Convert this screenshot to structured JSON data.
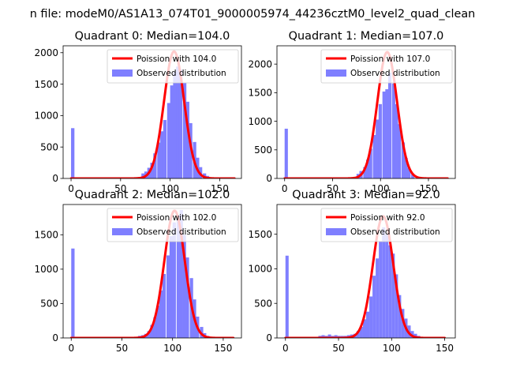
{
  "figure": {
    "suptitle": "n file: modeM0/AS1A13_074T01_9000005974_44236cztM0_level2_quad_clean"
  },
  "colors": {
    "poisson_line": "#ff0000",
    "observed_bars": "#7f7fff",
    "axes": "#000000",
    "background": "#ffffff"
  },
  "chart_data": [
    {
      "type": "bar",
      "title": "Quadrant 0: Median=104.0",
      "xlabel": "",
      "ylabel": "",
      "xlim": [
        -8,
        172
      ],
      "ylim": [
        0,
        2110
      ],
      "xticks": [
        0,
        50,
        100,
        150
      ],
      "yticks": [
        0,
        500,
        1000,
        1500,
        2000
      ],
      "legend": {
        "placement": "top-right",
        "entries": [
          "Poission with 104.0",
          "Observed distribution"
        ]
      },
      "series": [
        {
          "name": "Observed distribution",
          "kind": "histogram",
          "bin_width": 3.4,
          "bins": [
            {
              "x0": 0,
              "count": 800
            },
            {
              "x0": 71,
              "count": 80
            },
            {
              "x0": 74,
              "count": 110
            },
            {
              "x0": 77,
              "count": 170
            },
            {
              "x0": 80,
              "count": 250
            },
            {
              "x0": 83,
              "count": 400
            },
            {
              "x0": 87,
              "count": 570
            },
            {
              "x0": 90,
              "count": 750
            },
            {
              "x0": 93,
              "count": 930
            },
            {
              "x0": 97,
              "count": 1200
            },
            {
              "x0": 100,
              "count": 1480
            },
            {
              "x0": 103,
              "count": 1700
            },
            {
              "x0": 106,
              "count": 1780
            },
            {
              "x0": 109,
              "count": 1730
            },
            {
              "x0": 113,
              "count": 1520
            },
            {
              "x0": 116,
              "count": 1220
            },
            {
              "x0": 119,
              "count": 880
            },
            {
              "x0": 123,
              "count": 580
            },
            {
              "x0": 126,
              "count": 330
            },
            {
              "x0": 129,
              "count": 180
            },
            {
              "x0": 133,
              "count": 80
            },
            {
              "x0": 136,
              "count": 40
            }
          ]
        },
        {
          "name": "Poission with 104.0",
          "kind": "line",
          "x_range": [
            0,
            165
          ],
          "mean": 104.0,
          "peak": 2020,
          "sigma": 10.2
        }
      ]
    },
    {
      "type": "bar",
      "title": "Quadrant 1: Median=107.0",
      "xlabel": "",
      "ylabel": "",
      "xlim": [
        -8,
        178
      ],
      "ylim": [
        0,
        2320
      ],
      "xticks": [
        0,
        50,
        100,
        150
      ],
      "yticks": [
        0,
        500,
        1000,
        1500,
        2000
      ],
      "legend": {
        "placement": "top-right",
        "entries": [
          "Poission with 107.0",
          "Observed distribution"
        ]
      },
      "series": [
        {
          "name": "Observed distribution",
          "kind": "histogram",
          "bin_width": 3.4,
          "bins": [
            {
              "x0": 0,
              "count": 870
            },
            {
              "x0": 75,
              "count": 80
            },
            {
              "x0": 78,
              "count": 130
            },
            {
              "x0": 82,
              "count": 200
            },
            {
              "x0": 85,
              "count": 330
            },
            {
              "x0": 88,
              "count": 520
            },
            {
              "x0": 92,
              "count": 760
            },
            {
              "x0": 95,
              "count": 1030
            },
            {
              "x0": 98,
              "count": 1300
            },
            {
              "x0": 102,
              "count": 1520
            },
            {
              "x0": 105,
              "count": 1560
            },
            {
              "x0": 108,
              "count": 1850
            },
            {
              "x0": 112,
              "count": 1660
            },
            {
              "x0": 115,
              "count": 1300
            },
            {
              "x0": 118,
              "count": 950
            },
            {
              "x0": 122,
              "count": 630
            },
            {
              "x0": 125,
              "count": 360
            },
            {
              "x0": 128,
              "count": 180
            },
            {
              "x0": 132,
              "count": 80
            }
          ]
        },
        {
          "name": "Poission with 107.0",
          "kind": "line",
          "x_range": [
            0,
            170
          ],
          "mean": 107.0,
          "peak": 2210,
          "sigma": 10.3
        }
      ]
    },
    {
      "type": "bar",
      "title": "Quadrant 2: Median=102.0",
      "xlabel": "",
      "ylabel": "",
      "xlim": [
        -8,
        168
      ],
      "ylim": [
        0,
        1940
      ],
      "xticks": [
        0,
        50,
        100,
        150
      ],
      "yticks": [
        0,
        500,
        1000,
        1500
      ],
      "legend": {
        "placement": "top-right",
        "entries": [
          "Poission with 102.0",
          "Observed distribution"
        ]
      },
      "series": [
        {
          "name": "Observed distribution",
          "kind": "histogram",
          "bin_width": 3.3,
          "bins": [
            {
              "x0": 0,
              "count": 1300
            },
            {
              "x0": 66,
              "count": 30
            },
            {
              "x0": 69,
              "count": 40
            },
            {
              "x0": 72,
              "count": 60
            },
            {
              "x0": 75,
              "count": 100
            },
            {
              "x0": 78,
              "count": 190
            },
            {
              "x0": 81,
              "count": 300
            },
            {
              "x0": 84,
              "count": 470
            },
            {
              "x0": 87,
              "count": 690
            },
            {
              "x0": 90,
              "count": 930
            },
            {
              "x0": 94,
              "count": 1200
            },
            {
              "x0": 97,
              "count": 1480
            },
            {
              "x0": 100,
              "count": 1680
            },
            {
              "x0": 104,
              "count": 1780
            },
            {
              "x0": 107,
              "count": 1860
            },
            {
              "x0": 110,
              "count": 1500
            },
            {
              "x0": 113,
              "count": 1170
            },
            {
              "x0": 117,
              "count": 870
            },
            {
              "x0": 120,
              "count": 560
            },
            {
              "x0": 123,
              "count": 310
            },
            {
              "x0": 127,
              "count": 160
            },
            {
              "x0": 130,
              "count": 70
            },
            {
              "x0": 133,
              "count": 30
            }
          ]
        },
        {
          "name": "Poission with 102.0",
          "kind": "line",
          "x_range": [
            0,
            160
          ],
          "mean": 102.0,
          "peak": 1850,
          "sigma": 10.1
        }
      ]
    },
    {
      "type": "bar",
      "title": "Quadrant 3: Median=92.0",
      "xlabel": "",
      "ylabel": "",
      "xlim": [
        -8,
        160
      ],
      "ylim": [
        0,
        1930
      ],
      "xticks": [
        0,
        50,
        100,
        150
      ],
      "yticks": [
        0,
        500,
        1000,
        1500
      ],
      "legend": {
        "placement": "top-right",
        "entries": [
          "Poission with 92.0",
          "Observed distribution"
        ]
      },
      "series": [
        {
          "name": "Observed distribution",
          "kind": "histogram",
          "bin_width": 3.0,
          "bins": [
            {
              "x0": 0,
              "count": 1190
            },
            {
              "x0": 31,
              "count": 30
            },
            {
              "x0": 34,
              "count": 40
            },
            {
              "x0": 37,
              "count": 30
            },
            {
              "x0": 40,
              "count": 50
            },
            {
              "x0": 43,
              "count": 30
            },
            {
              "x0": 46,
              "count": 40
            },
            {
              "x0": 49,
              "count": 30
            },
            {
              "x0": 52,
              "count": 30
            },
            {
              "x0": 55,
              "count": 30
            },
            {
              "x0": 58,
              "count": 40
            },
            {
              "x0": 61,
              "count": 50
            },
            {
              "x0": 64,
              "count": 60
            },
            {
              "x0": 67,
              "count": 100
            },
            {
              "x0": 70,
              "count": 160
            },
            {
              "x0": 73,
              "count": 270
            },
            {
              "x0": 76,
              "count": 380
            },
            {
              "x0": 79,
              "count": 600
            },
            {
              "x0": 82,
              "count": 900
            },
            {
              "x0": 85,
              "count": 1150
            },
            {
              "x0": 88,
              "count": 1400
            },
            {
              "x0": 91,
              "count": 1600
            },
            {
              "x0": 94,
              "count": 1500
            },
            {
              "x0": 97,
              "count": 1340
            },
            {
              "x0": 100,
              "count": 1220
            },
            {
              "x0": 103,
              "count": 920
            },
            {
              "x0": 106,
              "count": 620
            },
            {
              "x0": 109,
              "count": 420
            },
            {
              "x0": 112,
              "count": 280
            },
            {
              "x0": 115,
              "count": 180
            },
            {
              "x0": 118,
              "count": 100
            },
            {
              "x0": 121,
              "count": 60
            },
            {
              "x0": 124,
              "count": 30
            }
          ]
        },
        {
          "name": "Poission with 92.0",
          "kind": "line",
          "x_range": [
            0,
            150
          ],
          "mean": 92.0,
          "peak": 1760,
          "sigma": 9.6
        }
      ]
    }
  ]
}
